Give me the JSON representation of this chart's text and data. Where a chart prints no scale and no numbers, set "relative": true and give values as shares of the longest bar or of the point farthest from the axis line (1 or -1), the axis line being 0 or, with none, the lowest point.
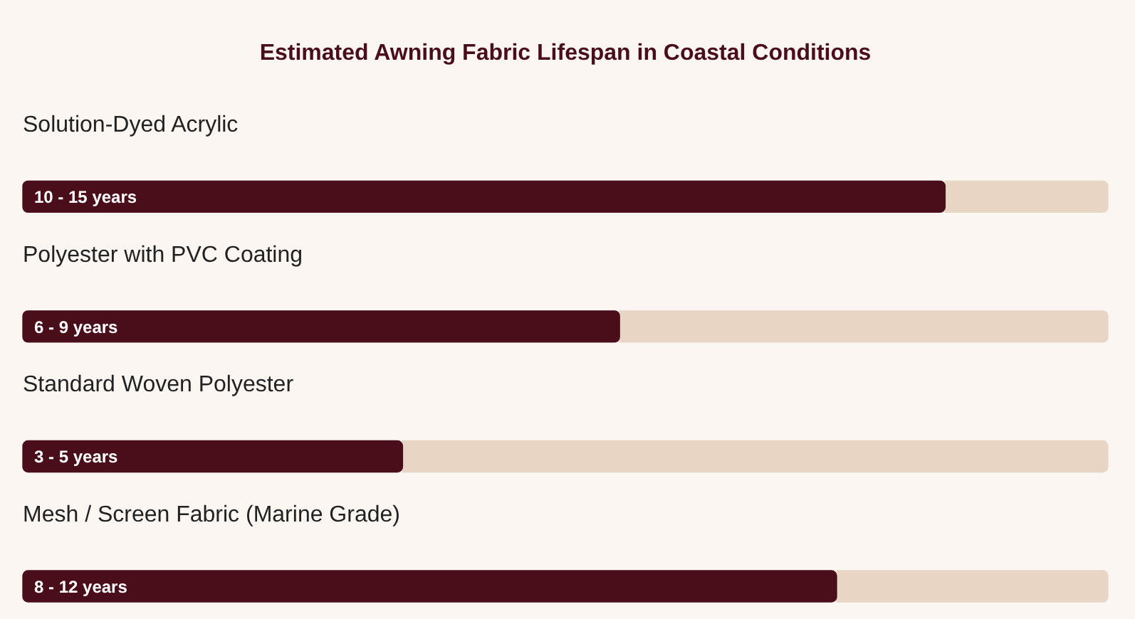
{
  "chart_data": {
    "type": "bar",
    "orientation": "horizontal",
    "stacked": true,
    "relative": true,
    "title": "Estimated Awning Fabric Lifespan in Coastal Conditions",
    "categories": [
      "Solution-Dyed Acrylic",
      "Polyester with PVC Coating",
      "Standard Woven Polyester",
      "Mesh / Screen Fabric (Marine Grade)"
    ],
    "series": [
      {
        "color": "#4a0e1a",
        "values": [
          0.85,
          0.55,
          0.35,
          0.75
        ]
      },
      {
        "color": "#e8d5c4",
        "values": [
          0.15,
          0.45,
          0.65,
          0.25
        ]
      }
    ],
    "annotations": [
      {
        "text": "10 - 15 years",
        "y": "Solution-Dyed Acrylic"
      },
      {
        "text": "6 - 9 years",
        "y": "Polyester with PVC Coating"
      },
      {
        "text": "3 - 5 years",
        "y": "Standard Woven Polyester"
      },
      {
        "text": "8 - 12 years",
        "y": "Mesh / Screen Fabric (Marine Grade)"
      }
    ],
    "legend": false,
    "tick_labels": "y"
  }
}
